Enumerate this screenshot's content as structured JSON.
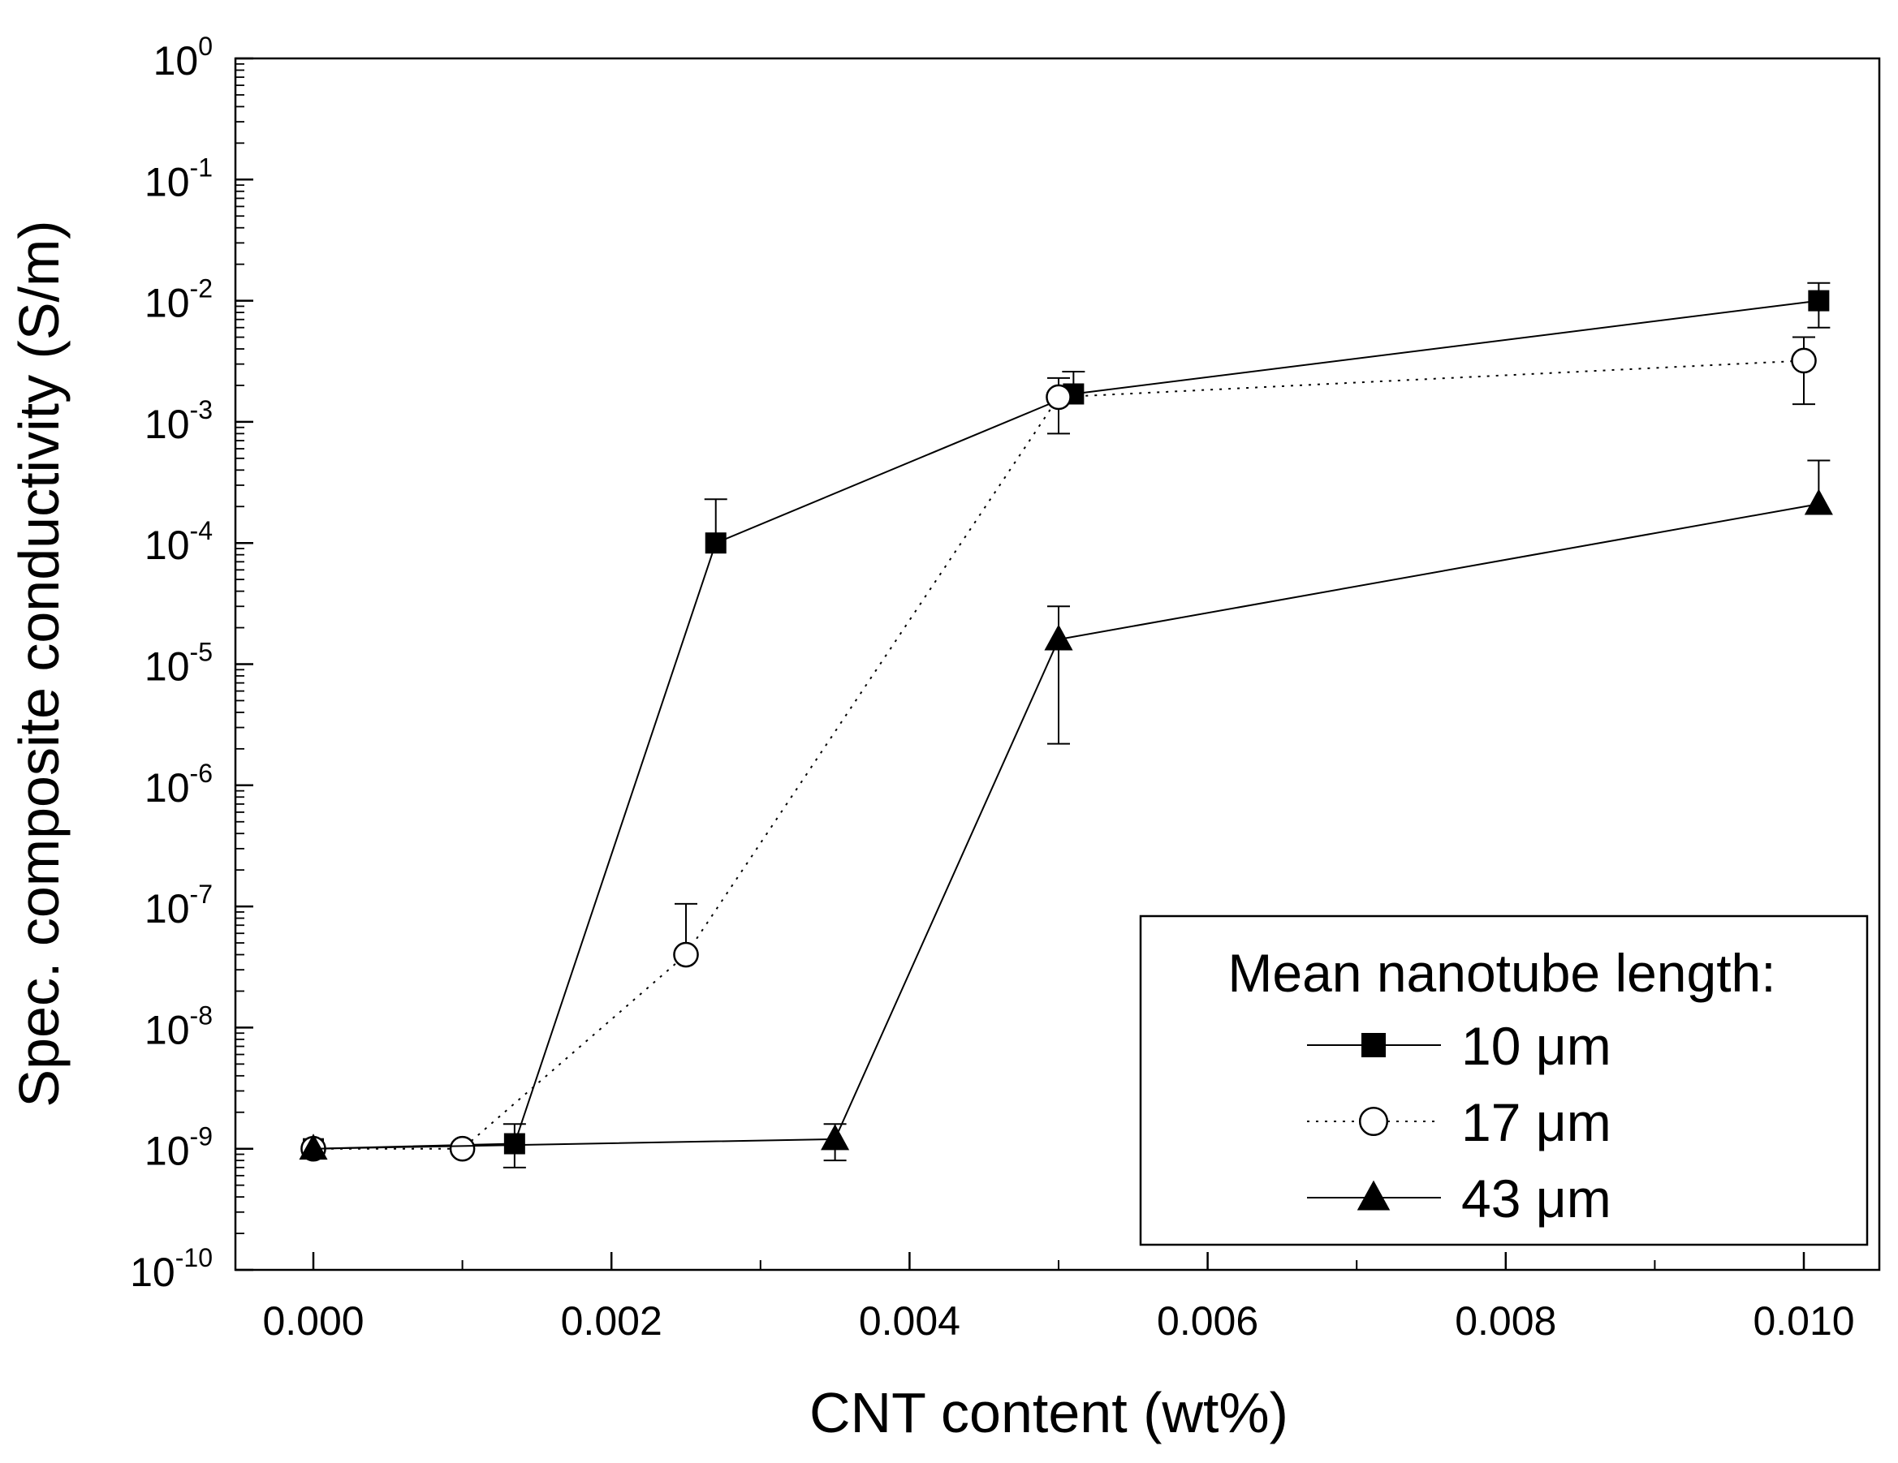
{
  "chart_data": {
    "type": "line",
    "title": "",
    "xlabel": "CNT content (wt%)",
    "ylabel": "Spec. composite conductivity (S/m)",
    "xlim": [
      -0.0006,
      0.0105
    ],
    "ylim_log10": [
      -10,
      0
    ],
    "yscale": "log",
    "grid": false,
    "x_ticks": [
      0.0,
      0.002,
      0.004,
      0.006,
      0.008,
      0.01
    ],
    "x_tick_labels": [
      "0.000",
      "0.002",
      "0.004",
      "0.006",
      "0.008",
      "0.010"
    ],
    "y_tick_exponents": [
      0,
      -1,
      -2,
      -3,
      -4,
      -5,
      -6,
      -7,
      -8,
      -9,
      -10
    ],
    "y_tick_labels": [
      {
        "base": "10",
        "exp": "0"
      },
      {
        "base": "10",
        "exp": "-1"
      },
      {
        "base": "10",
        "exp": "-2"
      },
      {
        "base": "10",
        "exp": "-3"
      },
      {
        "base": "10",
        "exp": "-4"
      },
      {
        "base": "10",
        "exp": "-5"
      },
      {
        "base": "10",
        "exp": "-6"
      },
      {
        "base": "10",
        "exp": "-7"
      },
      {
        "base": "10",
        "exp": "-8"
      },
      {
        "base": "10",
        "exp": "-9"
      },
      {
        "base": "10",
        "exp": "-10"
      }
    ],
    "legend": {
      "title": "Mean nanotube length:",
      "position": "bottom-right"
    },
    "series": [
      {
        "name": "10 μm",
        "marker": "filled-square",
        "line": "solid",
        "x": [
          0.0,
          0.00135,
          0.0027,
          0.0051,
          0.0101
        ],
        "y": [
          1e-09,
          1.1e-09,
          0.0001,
          0.0017,
          0.01
        ],
        "err_upper": [
          null,
          1.6e-09,
          0.00023,
          0.0026,
          0.014
        ],
        "err_lower": [
          null,
          7e-10,
          null,
          null,
          0.006
        ]
      },
      {
        "name": "17 μm",
        "marker": "open-circle",
        "line": "dotted",
        "x": [
          0.0,
          0.001,
          0.0025,
          0.005,
          0.01
        ],
        "y": [
          1e-09,
          1e-09,
          4e-08,
          0.0016,
          0.0032
        ],
        "err_upper": [
          null,
          null,
          1.05e-07,
          0.0023,
          0.005
        ],
        "err_lower": [
          null,
          null,
          null,
          0.0008,
          0.0014
        ]
      },
      {
        "name": "43 μm",
        "marker": "filled-triangle",
        "line": "solid",
        "x": [
          0.0,
          0.0035,
          0.005,
          0.0101
        ],
        "y": [
          1e-09,
          1.2e-09,
          1.6e-05,
          0.00021
        ],
        "err_upper": [
          null,
          1.6e-09,
          3e-05,
          0.00048
        ],
        "err_lower": [
          null,
          8e-10,
          2.2e-06,
          null
        ]
      }
    ]
  }
}
